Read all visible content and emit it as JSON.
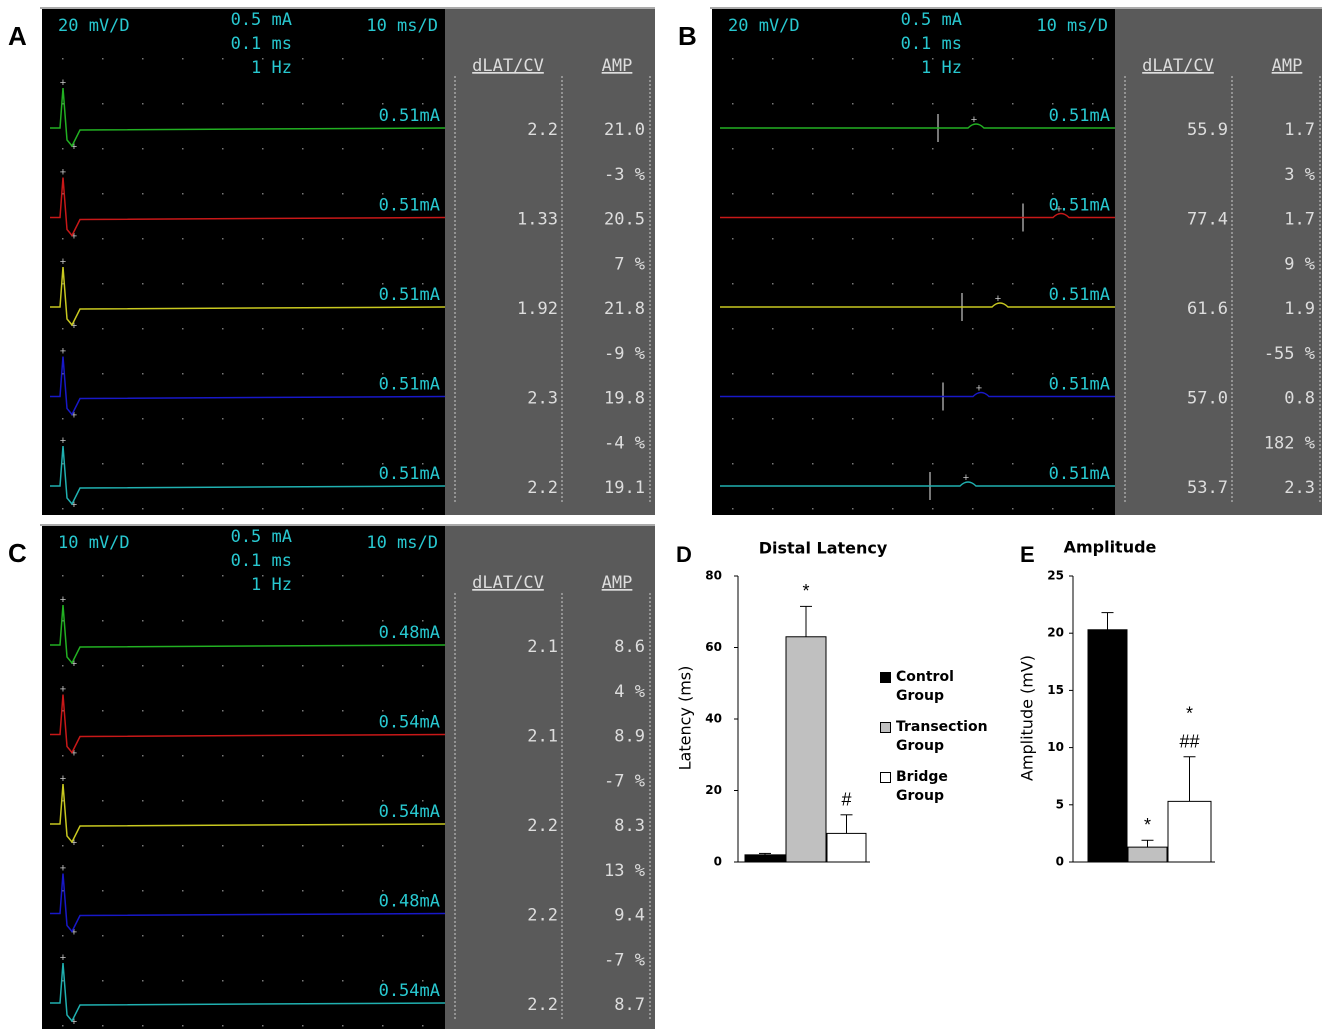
{
  "panels": [
    {
      "label": "A",
      "gain": "20 mV/D",
      "intensity": "0.5 mA",
      "duration": "0.1 ms",
      "rate": "1 Hz",
      "sweep": "10 ms/D",
      "col1": "dLAT/CV",
      "col2": "AMP",
      "traces": [
        {
          "color": "#22b022",
          "stim": "0.51mA",
          "dlat": "2.2",
          "amp": "21.0"
        },
        {
          "color": "#c81818",
          "stim": "0.51mA",
          "dlat": "1.33",
          "amp": "20.5"
        },
        {
          "color": "#c8c820",
          "stim": "0.51mA",
          "dlat": "1.92",
          "amp": "21.8"
        },
        {
          "color": "#1818c8",
          "stim": "0.51mA",
          "dlat": "2.3",
          "amp": "19.8"
        },
        {
          "color": "#20b0b0",
          "stim": "0.51mA",
          "dlat": "2.2",
          "amp": "19.1"
        }
      ],
      "changes": [
        "-3 %",
        "7 %",
        "-9 %",
        "-4 %"
      ]
    },
    {
      "label": "B",
      "gain": "20 mV/D",
      "intensity": "0.5 mA",
      "duration": "0.1 ms",
      "rate": "1 Hz",
      "sweep": "10 ms/D",
      "col1": "dLAT/CV",
      "col2": "AMP",
      "traces": [
        {
          "color": "#22b022",
          "stim": "0.51mA",
          "dlat": "55.9",
          "amp": "1.7"
        },
        {
          "color": "#c81818",
          "stim": "0.51mA",
          "dlat": "77.4",
          "amp": "1.7"
        },
        {
          "color": "#c8c820",
          "stim": "0.51mA",
          "dlat": "61.6",
          "amp": "1.9"
        },
        {
          "color": "#1818c8",
          "stim": "0.51mA",
          "dlat": "57.0",
          "amp": "0.8"
        },
        {
          "color": "#20b0b0",
          "stim": "0.51mA",
          "dlat": "53.7",
          "amp": "2.3"
        }
      ],
      "changes": [
        "3 %",
        "9 %",
        "-55 %",
        "182 %"
      ]
    },
    {
      "label": "C",
      "gain": "10 mV/D",
      "intensity": "0.5 mA",
      "duration": "0.1 ms",
      "rate": "1 Hz",
      "sweep": "10 ms/D",
      "col1": "dLAT/CV",
      "col2": "AMP",
      "traces": [
        {
          "color": "#22b022",
          "stim": "0.48mA",
          "dlat": "2.1",
          "amp": "8.6"
        },
        {
          "color": "#c81818",
          "stim": "0.54mA",
          "dlat": "2.1",
          "amp": "8.9"
        },
        {
          "color": "#c8c820",
          "stim": "0.54mA",
          "dlat": "2.2",
          "amp": "8.3"
        },
        {
          "color": "#1818c8",
          "stim": "0.48mA",
          "dlat": "2.2",
          "amp": "9.4"
        },
        {
          "color": "#20b0b0",
          "stim": "0.54mA",
          "dlat": "2.2",
          "amp": "8.7"
        }
      ],
      "changes": [
        "4 %",
        "-7 %",
        "13 %",
        "-7 %"
      ]
    }
  ],
  "chart_data": [
    {
      "type": "bar",
      "label": "D",
      "title": "Distal Latency",
      "y_label": "Latency (ms)",
      "categories": [
        "Control Group",
        "Transection Group",
        "Bridge Group"
      ],
      "colors": [
        "#000000",
        "#c0c0c0",
        "#ffffff"
      ],
      "values": [
        2,
        63,
        8
      ],
      "errors": [
        0.4,
        8.5,
        5.2
      ],
      "annotations": [
        [],
        [
          "*"
        ],
        [
          "#"
        ]
      ],
      "ylim": [
        0,
        80
      ],
      "yticks": [
        0,
        20,
        40,
        60,
        80
      ]
    },
    {
      "type": "bar",
      "label": "E",
      "title": "Amplitude",
      "y_label": "Amplitude (mV)",
      "colors": [
        "#000000",
        "#c0c0c0",
        "#ffffff"
      ],
      "values": [
        20.3,
        1.3,
        5.3
      ],
      "errors": [
        1.5,
        0.6,
        3.9
      ],
      "annotations": [
        [],
        [
          "*"
        ],
        [
          "*",
          "##"
        ]
      ],
      "ylim": [
        0,
        25
      ],
      "yticks": [
        0,
        5,
        10,
        15,
        20,
        25
      ]
    }
  ]
}
